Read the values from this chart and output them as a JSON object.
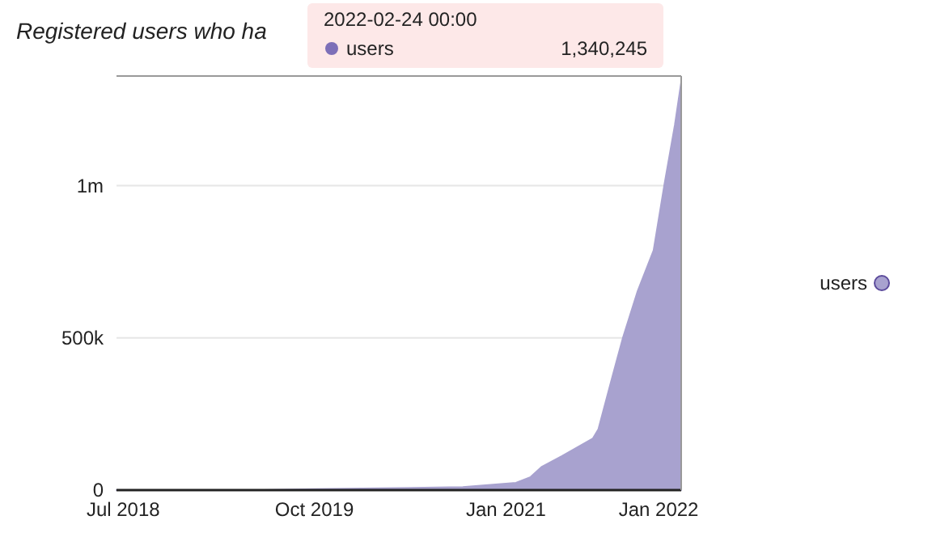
{
  "chart_data": {
    "type": "area",
    "subtitle": "Registered users who ha",
    "annotations": [
      "2022-02-24 00:00",
      "users",
      "1,340,245"
    ],
    "x": [
      "2018-06-15",
      "2019-06-01",
      "2019-10-01",
      "2020-03-01",
      "2020-09-20",
      "2021-01-25",
      "2021-03-01",
      "2021-03-28",
      "2021-05-15",
      "2021-07-28",
      "2021-08-10",
      "2021-09-10",
      "2021-10-07",
      "2021-11-12",
      "2021-12-20",
      "2022-01-15",
      "2022-02-09",
      "2022-02-24"
    ],
    "series": [
      {
        "name": "users",
        "color": "#a8a2cf",
        "values": [
          0,
          0,
          3000,
          6000,
          10000,
          24000,
          43000,
          77000,
          112000,
          170000,
          200000,
          360000,
          497000,
          654000,
          787000,
          1005000,
          1200000,
          1340000
        ]
      }
    ],
    "xlim": [
      "2018-06-15",
      "2022-02-24"
    ],
    "xticks": [
      {
        "value": "2018-07-01",
        "label": "Jul 2018"
      },
      {
        "value": "2019-10-01",
        "label": "Oct 2019"
      },
      {
        "value": "2021-01-01",
        "label": "Jan 2021"
      },
      {
        "value": "2022-01-01",
        "label": "Jan 2022"
      }
    ],
    "ylim": [
      0,
      1360000
    ],
    "yticks": [
      0,
      {
        "value": 500000,
        "label": "500k"
      },
      {
        "value": 1000000,
        "label": "1m"
      }
    ],
    "grid": "y",
    "legend": "right"
  }
}
